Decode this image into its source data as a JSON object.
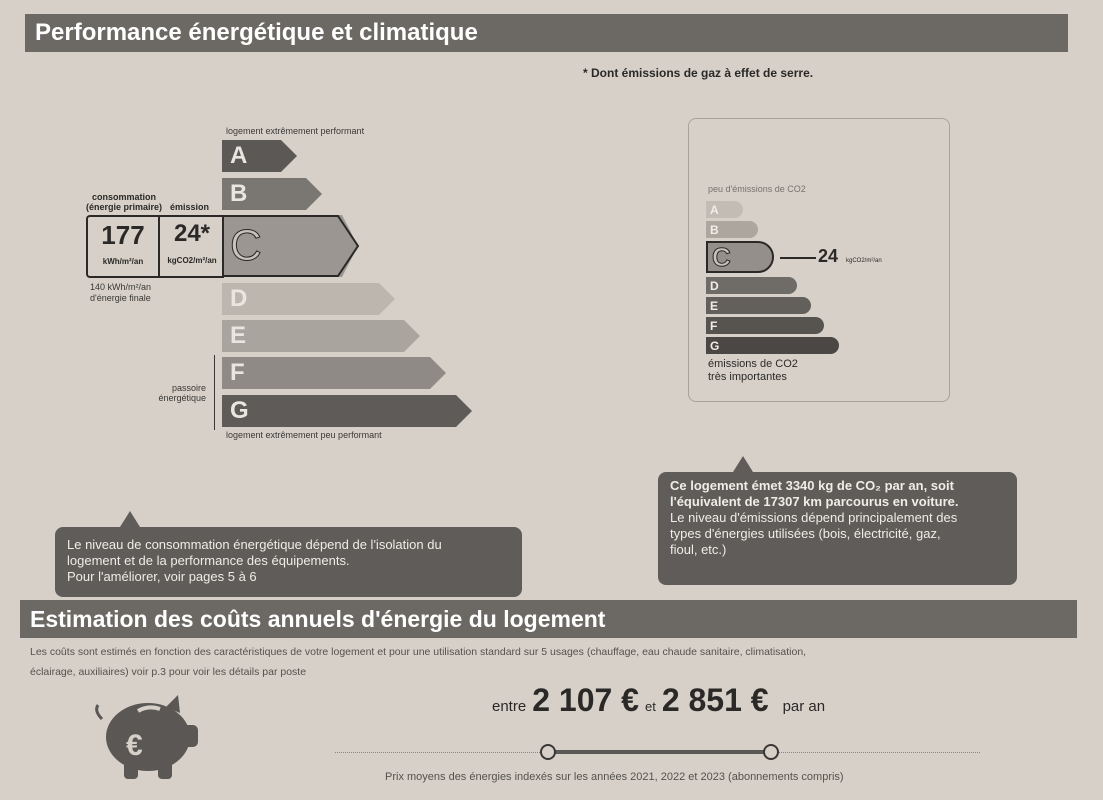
{
  "section1": {
    "title": "Performance énergétique et climatique",
    "footnote": "* Dont émissions de gaz à effet de serre."
  },
  "energy": {
    "top_label": "logement extrêmement performant",
    "bottom_label": "logement extrêmement peu performant",
    "classes": [
      "A",
      "B",
      "C",
      "D",
      "E",
      "F",
      "G"
    ],
    "current_class": "C",
    "consumption_label": "consommation\n(énergie primaire)",
    "emission_label": "émission",
    "consumption_value": "177",
    "consumption_unit": "kWh/m²/an",
    "emission_value": "24*",
    "emission_unit": "kgCO2/m²/an",
    "final_energy": "140 kWh/m²/an",
    "final_energy_label": "d'énergie finale",
    "passoire_label": "passoire\nénergétique"
  },
  "co2": {
    "top_label": "peu d'émissions de CO2",
    "classes": [
      "A",
      "B",
      "C",
      "D",
      "E",
      "F",
      "G"
    ],
    "current_class": "C",
    "value": "24",
    "unit": "kgCO2/m²/an",
    "bottom_label_1": "émissions de CO2",
    "bottom_label_2": "très importantes"
  },
  "callout_left": {
    "line1": "Le niveau de consommation énergétique dépend de l'isolation du",
    "line2": "logement et de la performance des équipements.",
    "line3": "Pour l'améliorer, voir pages 5 à 6"
  },
  "callout_right": {
    "line1": "Ce logement émet 3340  kg de CO₂ par an, soit",
    "line2": "l'équivalent de 17307 km parcourus en voiture.",
    "line3": "Le niveau d'émissions dépend principalement des",
    "line4": "types d'énergies utilisées (bois, électricité, gaz,",
    "line5": "fioul, etc.)"
  },
  "section2": {
    "title": "Estimation des coûts annuels d'énergie du logement",
    "desc1": "Les coûts sont estimés en fonction des caractéristiques de votre logement et pour une utilisation standard sur 5 usages (chauffage, eau chaude sanitaire, climatisation,",
    "desc2": "éclairage, auxiliaires) voir p.3 pour voir les détails par poste",
    "entre": "entre",
    "min": "2 107 €",
    "et": "et",
    "max": "2 851 €",
    "par_an": "par an",
    "footer": "Prix moyens des énergies indexés sur les années 2021, 2022 et 2023  (abonnements compris)",
    "icon": "piggy-bank-euro-icon"
  },
  "colors": {
    "header": "#6c6965",
    "background": "#d6d0c8"
  }
}
